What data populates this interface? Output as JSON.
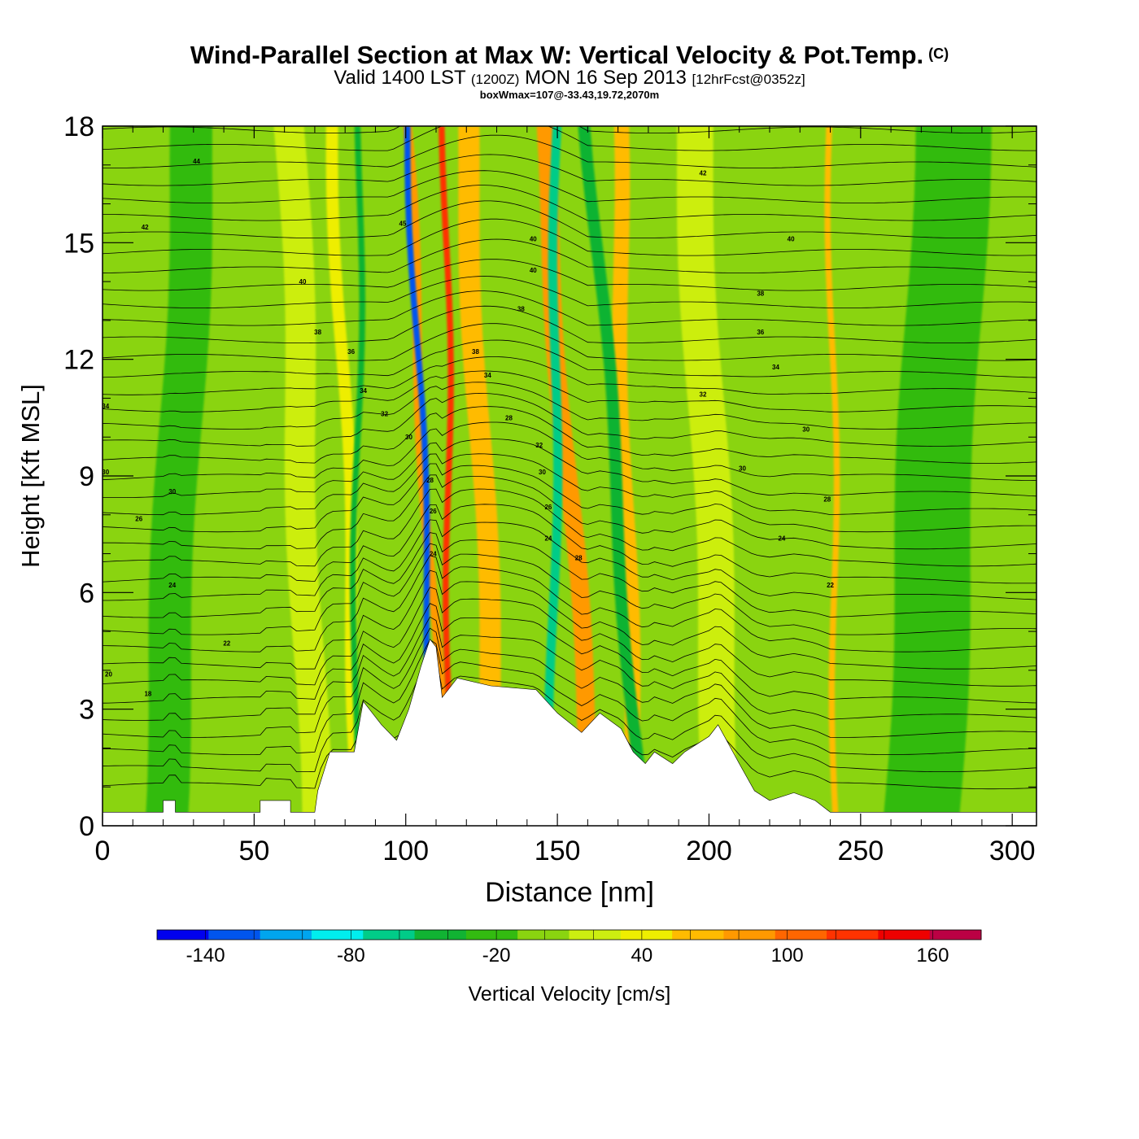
{
  "title": {
    "main": "Wind-Parallel Section at Max W: Vertical Velocity & Pot.Temp.",
    "copyright": "(C)",
    "valid_prefix": "Valid 1400 LST",
    "valid_utc": "(1200Z)",
    "valid_date": "MON 16 Sep 2013",
    "forecast": "[12hrFcst@0352z]",
    "box_wmax": "boxWmax=107@-33.43,19.72,2070m"
  },
  "chart_data": {
    "type": "heatmap",
    "xlabel": "Distance [nm]",
    "ylabel": "Height [Kft MSL]",
    "xlim": [
      0,
      308
    ],
    "ylim": [
      0,
      18
    ],
    "x_ticks": [
      0,
      50,
      100,
      150,
      200,
      250,
      300
    ],
    "y_ticks": [
      0,
      3,
      6,
      9,
      12,
      15,
      18
    ],
    "colorbar": {
      "label": "Vertical Velocity [cm/s]",
      "tick_labels": [
        "-140",
        "-80",
        "-20",
        "40",
        "100",
        "160"
      ],
      "tick_values": [
        -140,
        -80,
        -20,
        40,
        100,
        160
      ],
      "levels": [
        -160,
        -140,
        -120,
        -100,
        -80,
        -60,
        -40,
        -20,
        0,
        20,
        40,
        60,
        80,
        100,
        120,
        140,
        160,
        180
      ],
      "colors": [
        "#0000ee",
        "#0055ee",
        "#00a5ee",
        "#00eeee",
        "#00cc88",
        "#11b333",
        "#33bb11",
        "#8ad410",
        "#ccee11",
        "#eeee00",
        "#ffbb00",
        "#ff9900",
        "#ff6600",
        "#ff3300",
        "#ee0000",
        "#bb0044"
      ]
    },
    "background_value": -5,
    "updraft_bands": [
      {
        "x": 85,
        "x_top": 76,
        "width": 4,
        "value": 35
      },
      {
        "x": 113,
        "x_top": 100,
        "width": 3,
        "value": 75
      },
      {
        "x": 115,
        "x_top": 113,
        "width": 2,
        "value": 115
      },
      {
        "x": 130,
        "x_top": 120,
        "width": 7,
        "value": 40
      },
      {
        "x": 162,
        "x_top": 145,
        "width": 6,
        "value": 70
      },
      {
        "x": 175,
        "x_top": 170,
        "width": 5,
        "value": 45
      },
      {
        "x": 242,
        "x_top": 240,
        "width": 2,
        "value": 45
      },
      {
        "x": 70,
        "x_top": 62,
        "width": 10,
        "value": 15
      },
      {
        "x": 205,
        "x_top": 195,
        "width": 12,
        "value": 15
      }
    ],
    "downdraft_bands": [
      {
        "x": 110,
        "x_top": 101,
        "width": 2,
        "value": -125
      },
      {
        "x": 148,
        "x_top": 150,
        "width": 3,
        "value": -75
      },
      {
        "x": 83,
        "x_top": 85,
        "width": 2,
        "value": -50
      },
      {
        "x": 178,
        "x_top": 160,
        "width": 4,
        "value": -45
      },
      {
        "x": 20,
        "x_top": 30,
        "width": 14,
        "value": -25
      },
      {
        "x": 270,
        "x_top": 280,
        "width": 25,
        "value": -25
      }
    ],
    "terrain": [
      [
        0,
        0.35
      ],
      [
        20,
        0.35
      ],
      [
        20,
        0.65
      ],
      [
        24,
        0.65
      ],
      [
        24,
        0.35
      ],
      [
        52,
        0.35
      ],
      [
        52,
        0.65
      ],
      [
        62,
        0.65
      ],
      [
        62,
        0.35
      ],
      [
        70,
        0.35
      ],
      [
        71,
        0.9
      ],
      [
        75,
        1.9
      ],
      [
        83,
        1.9
      ],
      [
        86,
        3.2
      ],
      [
        92,
        2.6
      ],
      [
        97,
        2.2
      ],
      [
        101,
        3.0
      ],
      [
        105,
        4.1
      ],
      [
        108,
        4.8
      ],
      [
        110,
        4.6
      ],
      [
        112,
        3.3
      ],
      [
        117,
        3.8
      ],
      [
        128,
        3.6
      ],
      [
        143,
        3.5
      ],
      [
        150,
        2.9
      ],
      [
        158,
        2.4
      ],
      [
        164,
        2.9
      ],
      [
        171,
        2.5
      ],
      [
        175,
        1.9
      ],
      [
        179,
        1.6
      ],
      [
        182,
        1.9
      ],
      [
        188,
        1.6
      ],
      [
        192,
        1.9
      ],
      [
        200,
        2.3
      ],
      [
        203,
        2.6
      ],
      [
        210,
        1.6
      ],
      [
        215,
        0.9
      ],
      [
        220,
        0.65
      ],
      [
        228,
        0.85
      ],
      [
        235,
        0.65
      ],
      [
        240,
        0.35
      ],
      [
        308,
        0.35
      ]
    ],
    "theta_contour_labels": [
      {
        "x": 1,
        "y": 10.8,
        "text": "34"
      },
      {
        "x": 1,
        "y": 9.1,
        "text": "30"
      },
      {
        "x": 12,
        "y": 7.9,
        "text": "26"
      },
      {
        "x": 14,
        "y": 15.4,
        "text": "42"
      },
      {
        "x": 31,
        "y": 17.1,
        "text": "44"
      },
      {
        "x": 23,
        "y": 8.6,
        "text": "30"
      },
      {
        "x": 23,
        "y": 6.2,
        "text": "24"
      },
      {
        "x": 15,
        "y": 3.4,
        "text": "18"
      },
      {
        "x": 2,
        "y": 3.9,
        "text": "20"
      },
      {
        "x": 41,
        "y": 4.7,
        "text": "22"
      },
      {
        "x": 66,
        "y": 14.0,
        "text": "40"
      },
      {
        "x": 71,
        "y": 12.7,
        "text": "38"
      },
      {
        "x": 82,
        "y": 12.2,
        "text": "36"
      },
      {
        "x": 86,
        "y": 11.2,
        "text": "34"
      },
      {
        "x": 93,
        "y": 10.6,
        "text": "32"
      },
      {
        "x": 101,
        "y": 10.0,
        "text": "30"
      },
      {
        "x": 99,
        "y": 15.5,
        "text": "45"
      },
      {
        "x": 108,
        "y": 8.9,
        "text": "28"
      },
      {
        "x": 109,
        "y": 8.1,
        "text": "26"
      },
      {
        "x": 109,
        "y": 7.0,
        "text": "24"
      },
      {
        "x": 123,
        "y": 12.2,
        "text": "38"
      },
      {
        "x": 127,
        "y": 11.6,
        "text": "34"
      },
      {
        "x": 134,
        "y": 10.5,
        "text": "28"
      },
      {
        "x": 138,
        "y": 13.3,
        "text": "38"
      },
      {
        "x": 142,
        "y": 15.1,
        "text": "40"
      },
      {
        "x": 142,
        "y": 14.3,
        "text": "40"
      },
      {
        "x": 144,
        "y": 9.8,
        "text": "32"
      },
      {
        "x": 145,
        "y": 9.1,
        "text": "30"
      },
      {
        "x": 147,
        "y": 8.2,
        "text": "26"
      },
      {
        "x": 147,
        "y": 7.4,
        "text": "24"
      },
      {
        "x": 157,
        "y": 6.9,
        "text": "28"
      },
      {
        "x": 198,
        "y": 16.8,
        "text": "42"
      },
      {
        "x": 211,
        "y": 9.2,
        "text": "30"
      },
      {
        "x": 198,
        "y": 11.1,
        "text": "32"
      },
      {
        "x": 217,
        "y": 12.7,
        "text": "36"
      },
      {
        "x": 217,
        "y": 13.7,
        "text": "38"
      },
      {
        "x": 227,
        "y": 15.1,
        "text": "40"
      },
      {
        "x": 222,
        "y": 11.8,
        "text": "34"
      },
      {
        "x": 232,
        "y": 10.2,
        "text": "30"
      },
      {
        "x": 239,
        "y": 8.4,
        "text": "28"
      },
      {
        "x": 224,
        "y": 7.4,
        "text": "24"
      },
      {
        "x": 240,
        "y": 6.2,
        "text": "22"
      }
    ]
  }
}
